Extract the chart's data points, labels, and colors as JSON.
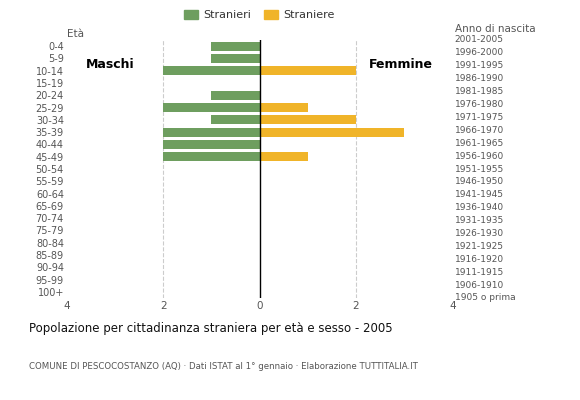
{
  "age_groups": [
    "100+",
    "95-99",
    "90-94",
    "85-89",
    "80-84",
    "75-79",
    "70-74",
    "65-69",
    "60-64",
    "55-59",
    "50-54",
    "45-49",
    "40-44",
    "35-39",
    "30-34",
    "25-29",
    "20-24",
    "15-19",
    "10-14",
    "5-9",
    "0-4"
  ],
  "birth_years": [
    "1905 o prima",
    "1906-1910",
    "1911-1915",
    "1916-1920",
    "1921-1925",
    "1926-1930",
    "1931-1935",
    "1936-1940",
    "1941-1945",
    "1946-1950",
    "1951-1955",
    "1956-1960",
    "1961-1965",
    "1966-1970",
    "1971-1975",
    "1976-1980",
    "1981-1985",
    "1986-1990",
    "1991-1995",
    "1996-2000",
    "2001-2005"
  ],
  "males": [
    0,
    0,
    0,
    0,
    0,
    0,
    0,
    0,
    0,
    0,
    0,
    2,
    2,
    2,
    1,
    2,
    1,
    0,
    2,
    1,
    1
  ],
  "females": [
    0,
    0,
    0,
    0,
    0,
    0,
    0,
    0,
    0,
    0,
    0,
    1,
    0,
    3,
    2,
    1,
    0,
    0,
    2,
    0,
    0
  ],
  "male_color": "#6e9e5f",
  "female_color": "#f0b429",
  "title": "Popolazione per cittadinanza straniera per età e sesso - 2005",
  "subtitle": "COMUNE DI PESCOCOSTANZO (AQ) · Dati ISTAT al 1° gennaio · Elaborazione TUTTITALIA.IT",
  "legend_male": "Stranieri",
  "legend_female": "Straniere",
  "xlim": 4,
  "ylabel_left": "Età",
  "ylabel_right": "Anno di nascita",
  "label_maschi": "Maschi",
  "label_femmine": "Femmine",
  "bg_color": "#ffffff",
  "grid_color": "#cccccc",
  "bar_height": 0.75
}
